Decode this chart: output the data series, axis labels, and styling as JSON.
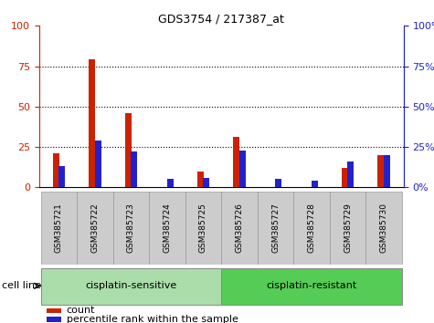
{
  "title": "GDS3754 / 217387_at",
  "samples": [
    "GSM385721",
    "GSM385722",
    "GSM385723",
    "GSM385724",
    "GSM385725",
    "GSM385726",
    "GSM385727",
    "GSM385728",
    "GSM385729",
    "GSM385730"
  ],
  "count": [
    21,
    79,
    46,
    0,
    10,
    31,
    0,
    0,
    12,
    20
  ],
  "percentile": [
    13,
    29,
    22,
    5,
    6,
    23,
    5,
    4,
    16,
    20
  ],
  "groups": [
    {
      "label": "cisplatin-sensitive",
      "start": 0,
      "end": 5,
      "color": "#aaddaa"
    },
    {
      "label": "cisplatin-resistant",
      "start": 5,
      "end": 10,
      "color": "#55cc55"
    }
  ],
  "group_label": "cell line",
  "bar_width": 0.18,
  "count_color": "#cc2200",
  "percentile_color": "#2222cc",
  "ylim": [
    0,
    100
  ],
  "grid_lines": [
    25,
    50,
    75
  ],
  "legend_count": "count",
  "legend_percentile": "percentile rank within the sample",
  "plot_bg": "#ffffff",
  "axis_left_color": "#cc2200",
  "axis_right_color": "#2222cc",
  "tick_bg_color": "#cccccc",
  "tick_sep_color": "#999999"
}
